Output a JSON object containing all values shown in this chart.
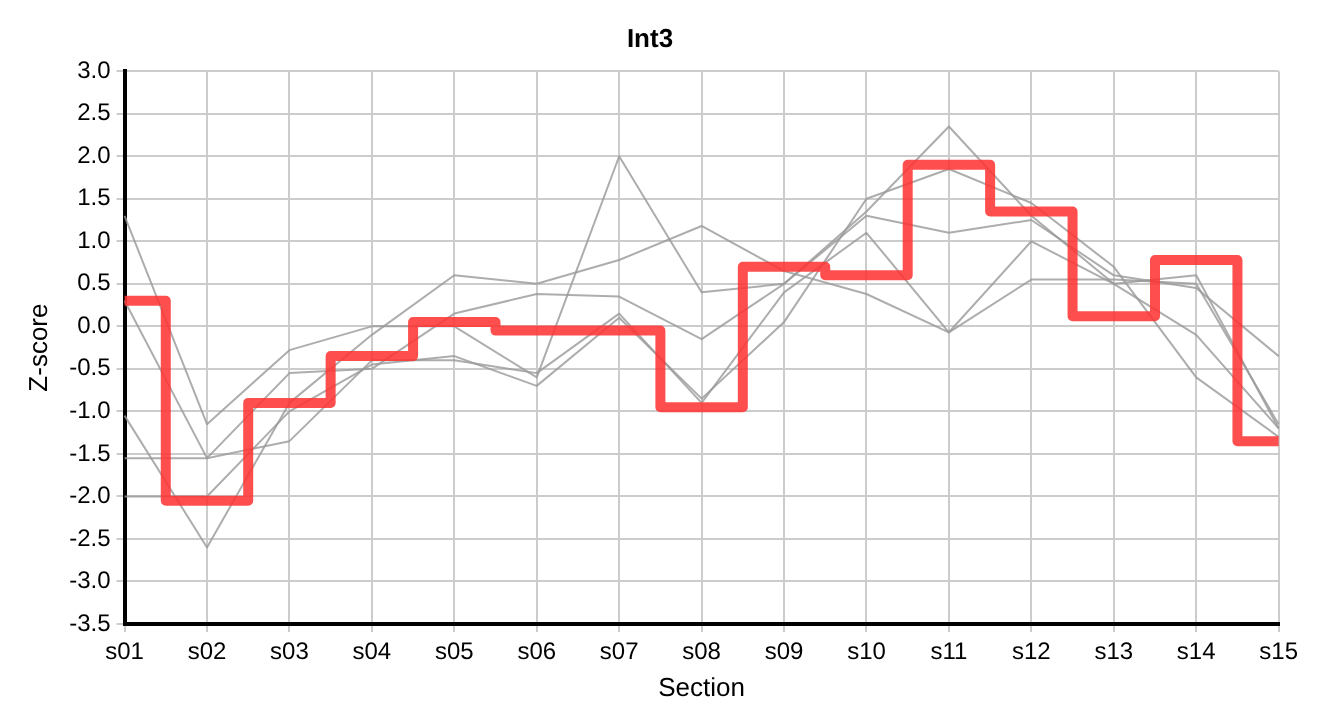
{
  "chart_data": {
    "type": "line",
    "title": "Int3",
    "xlabel": "Section",
    "ylabel": "Z-score",
    "categories": [
      "s01",
      "s02",
      "s03",
      "s04",
      "s05",
      "s06",
      "s07",
      "s08",
      "s09",
      "s10",
      "s11",
      "s12",
      "s13",
      "s14",
      "s15"
    ],
    "series": [
      {
        "color": "#999999",
        "values": [
          1.3,
          -1.15,
          -0.28,
          0.0,
          0.0,
          -0.6,
          2.0,
          0.4,
          0.5,
          1.35,
          2.35,
          1.3,
          0.5,
          0.6,
          -1.2
        ]
      },
      {
        "color": "#999999",
        "values": [
          0.3,
          -1.55,
          -0.55,
          -0.5,
          0.15,
          0.38,
          0.35,
          -0.15,
          0.5,
          1.3,
          1.1,
          1.25,
          0.6,
          0.45,
          -0.35
        ]
      },
      {
        "color": "#999999",
        "values": [
          -1.05,
          -2.6,
          -0.9,
          -0.1,
          0.6,
          0.5,
          0.78,
          1.18,
          0.65,
          0.38,
          -0.07,
          0.55,
          0.55,
          0.5,
          -1.15
        ]
      },
      {
        "color": "#999999",
        "values": [
          -1.55,
          -1.55,
          -1.35,
          -0.4,
          -0.4,
          -0.55,
          0.15,
          -0.9,
          0.4,
          1.1,
          -0.07,
          1.0,
          0.5,
          -0.1,
          -1.2
        ]
      },
      {
        "color": "#999999",
        "values": [
          -2.0,
          -2.0,
          -1.0,
          -0.45,
          -0.35,
          -0.7,
          0.1,
          -0.85,
          0.05,
          1.5,
          1.85,
          1.45,
          0.7,
          -0.6,
          -1.3
        ]
      },
      {
        "type": "step",
        "color": "#ff3333",
        "values": [
          0.3,
          -2.05,
          -0.9,
          -0.35,
          0.05,
          -0.05,
          -0.05,
          -0.95,
          0.7,
          0.6,
          1.9,
          1.35,
          0.12,
          0.78,
          -1.35
        ]
      }
    ],
    "ylim": [
      -3.5,
      3.0
    ],
    "yticks": [
      {
        "value": -3.5,
        "label": "-3.5"
      },
      {
        "value": -3,
        "label": "-3.0"
      },
      -2.5,
      {
        "value": -2,
        "label": "-2.0"
      },
      -1.5,
      {
        "value": -1,
        "label": "-1.0"
      },
      -0.5,
      {
        "value": 0,
        "label": "0.0"
      },
      0.5,
      {
        "value": 1,
        "label": "1.0"
      },
      1.5,
      {
        "value": 2,
        "label": "2.0"
      },
      2.5,
      {
        "value": 3,
        "label": "3.0"
      }
    ],
    "grid": true,
    "legend": false,
    "marker": "none"
  }
}
